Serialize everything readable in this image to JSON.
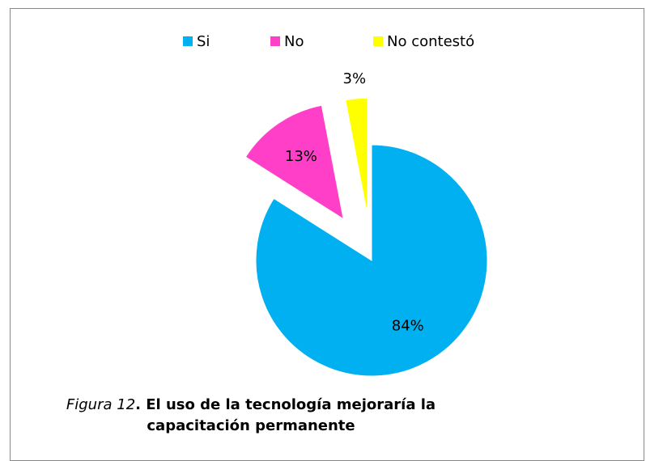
{
  "chart_data": {
    "type": "pie",
    "categories": [
      "Si",
      "No",
      "No contestó"
    ],
    "values": [
      84,
      13,
      3
    ],
    "value_labels": [
      "84%",
      "13%",
      "3%"
    ],
    "colors": [
      "#00b0f0",
      "#ff3fc8",
      "#ffff00"
    ],
    "legend": "top",
    "figure_label": "Figura 12",
    "title": ". El uso de la tecnología mejoraría la capacitación permanente"
  }
}
